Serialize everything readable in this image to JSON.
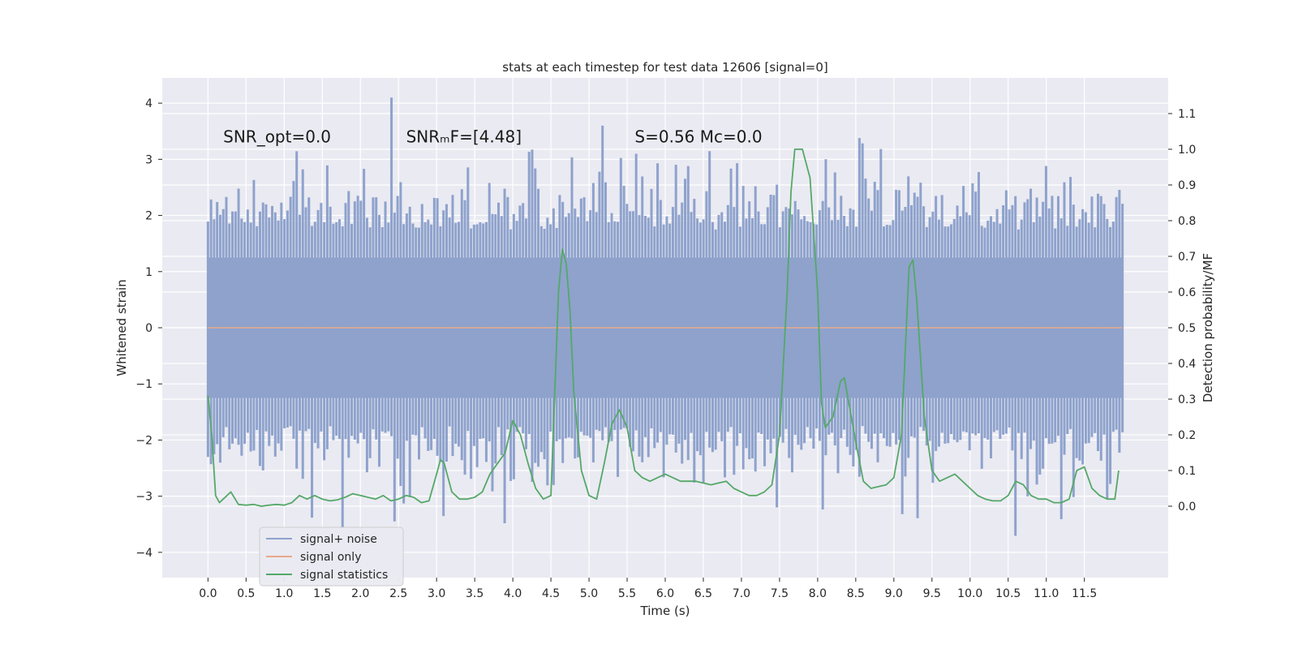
{
  "chart_data": {
    "type": "line",
    "title": "stats at each timestep for test data 12606 [signal=0]",
    "xlabel": "Time (s)",
    "ylabel_left": "Whitened strain",
    "ylabel_right": "Detection probability/MF",
    "xlim": [
      -0.6,
      12.6
    ],
    "ylim_left": [
      -4.45,
      4.45
    ],
    "ylim_right": [
      -0.2,
      1.2
    ],
    "x_ticks": [
      0.0,
      0.5,
      1.0,
      1.5,
      2.0,
      2.5,
      3.0,
      3.5,
      4.0,
      4.5,
      5.0,
      5.5,
      6.0,
      6.5,
      7.0,
      7.5,
      8.0,
      8.5,
      9.0,
      9.5,
      10.0,
      10.5,
      11.0,
      11.5
    ],
    "x_tick_labels": [
      "0.0",
      "0.5",
      "1.0",
      "1.5",
      "2.0",
      "2.5",
      "3.0",
      "3.5",
      "4.0",
      "4.5",
      "5.0",
      "5.5",
      "6.0",
      "6.5",
      "7.0",
      "7.5",
      "8.0",
      "8.5",
      "9.0",
      "9.5",
      "10.0",
      "10.5",
      "11.0",
      "11.5"
    ],
    "y_left_ticks": [
      -4,
      -3,
      -2,
      -1,
      0,
      1,
      2,
      3,
      4
    ],
    "y_left_tick_labels": [
      "−4",
      "−3",
      "−2",
      "−1",
      "0",
      "1",
      "2",
      "3",
      "4"
    ],
    "y_right_ticks": [
      0.0,
      0.1,
      0.2,
      0.3,
      0.4,
      0.5,
      0.6,
      0.7,
      0.8,
      0.9,
      1.0,
      1.1
    ],
    "y_right_tick_labels": [
      "0.0",
      "0.1",
      "0.2",
      "0.3",
      "0.4",
      "0.5",
      "0.6",
      "0.7",
      "0.8",
      "0.9",
      "1.0",
      "1.1"
    ],
    "annotations": [
      {
        "text": "SNR_opt=0.0",
        "x": 0.2,
        "y": 3.3
      },
      {
        "text": "SNRₘF=[4.48]",
        "x": 2.6,
        "y": 3.3
      },
      {
        "text": "S=0.56   Mᴄ=0.0",
        "x": 5.6,
        "y": 3.3
      }
    ],
    "legend": {
      "placement": "lower-left",
      "entries": [
        {
          "label": "signal+ noise",
          "color": "#8ea2cc"
        },
        {
          "label": "signal only",
          "color": "#e8a98b"
        },
        {
          "label": "signal statistics",
          "color": "#55a868"
        }
      ]
    },
    "series": [
      {
        "name": "signal+ noise",
        "axis": "left",
        "color": "#8ea2cc",
        "x_range": [
          0.0,
          12.0
        ],
        "envelope_points": 300,
        "amplitude_std": 1.0
      },
      {
        "name": "signal only",
        "axis": "left",
        "color": "#e8a98b",
        "x": [
          0.0,
          12.0
        ],
        "y": [
          0.0,
          0.0
        ]
      },
      {
        "name": "signal statistics",
        "axis": "right",
        "color": "#55a868",
        "x": [
          0.0,
          0.05,
          0.1,
          0.15,
          0.2,
          0.3,
          0.4,
          0.5,
          0.6,
          0.7,
          0.8,
          0.9,
          1.0,
          1.1,
          1.2,
          1.3,
          1.4,
          1.5,
          1.6,
          1.7,
          1.8,
          1.9,
          2.0,
          2.1,
          2.2,
          2.3,
          2.4,
          2.5,
          2.6,
          2.7,
          2.8,
          2.9,
          3.0,
          3.05,
          3.1,
          3.15,
          3.2,
          3.3,
          3.4,
          3.5,
          3.6,
          3.7,
          3.8,
          3.9,
          4.0,
          4.1,
          4.2,
          4.3,
          4.4,
          4.5,
          4.6,
          4.65,
          4.7,
          4.75,
          4.8,
          4.9,
          5.0,
          5.1,
          5.2,
          5.3,
          5.4,
          5.5,
          5.6,
          5.7,
          5.8,
          5.9,
          6.0,
          6.1,
          6.2,
          6.3,
          6.4,
          6.5,
          6.6,
          6.7,
          6.8,
          6.9,
          7.0,
          7.1,
          7.2,
          7.3,
          7.4,
          7.5,
          7.6,
          7.65,
          7.7,
          7.8,
          7.9,
          8.0,
          8.05,
          8.1,
          8.2,
          8.3,
          8.35,
          8.4,
          8.5,
          8.6,
          8.7,
          8.8,
          8.9,
          9.0,
          9.1,
          9.2,
          9.25,
          9.3,
          9.4,
          9.5,
          9.6,
          9.7,
          9.8,
          9.9,
          10.0,
          10.1,
          10.2,
          10.3,
          10.4,
          10.5,
          10.6,
          10.7,
          10.8,
          10.9,
          11.0,
          11.1,
          11.2,
          11.3,
          11.4,
          11.5,
          11.6,
          11.7,
          11.8,
          11.9,
          11.95
        ],
        "y": [
          0.31,
          0.2,
          0.03,
          0.01,
          0.02,
          0.04,
          0.005,
          0.003,
          0.005,
          0.0,
          0.003,
          0.005,
          0.003,
          0.01,
          0.03,
          0.02,
          0.03,
          0.02,
          0.015,
          0.018,
          0.025,
          0.035,
          0.03,
          0.025,
          0.02,
          0.03,
          0.015,
          0.02,
          0.03,
          0.025,
          0.01,
          0.015,
          0.09,
          0.13,
          0.12,
          0.08,
          0.04,
          0.02,
          0.02,
          0.025,
          0.04,
          0.09,
          0.12,
          0.15,
          0.24,
          0.2,
          0.12,
          0.05,
          0.02,
          0.03,
          0.6,
          0.72,
          0.68,
          0.55,
          0.32,
          0.1,
          0.03,
          0.02,
          0.12,
          0.23,
          0.27,
          0.22,
          0.1,
          0.08,
          0.07,
          0.08,
          0.09,
          0.08,
          0.07,
          0.07,
          0.07,
          0.065,
          0.06,
          0.065,
          0.07,
          0.05,
          0.04,
          0.03,
          0.03,
          0.04,
          0.06,
          0.2,
          0.6,
          0.88,
          1.0,
          1.0,
          0.92,
          0.6,
          0.29,
          0.22,
          0.25,
          0.35,
          0.36,
          0.3,
          0.18,
          0.07,
          0.05,
          0.055,
          0.06,
          0.08,
          0.2,
          0.67,
          0.69,
          0.58,
          0.25,
          0.1,
          0.07,
          0.08,
          0.09,
          0.07,
          0.05,
          0.03,
          0.02,
          0.015,
          0.015,
          0.03,
          0.07,
          0.06,
          0.03,
          0.02,
          0.02,
          0.01,
          0.01,
          0.02,
          0.1,
          0.11,
          0.05,
          0.03,
          0.02,
          0.02,
          0.1
        ]
      }
    ]
  }
}
